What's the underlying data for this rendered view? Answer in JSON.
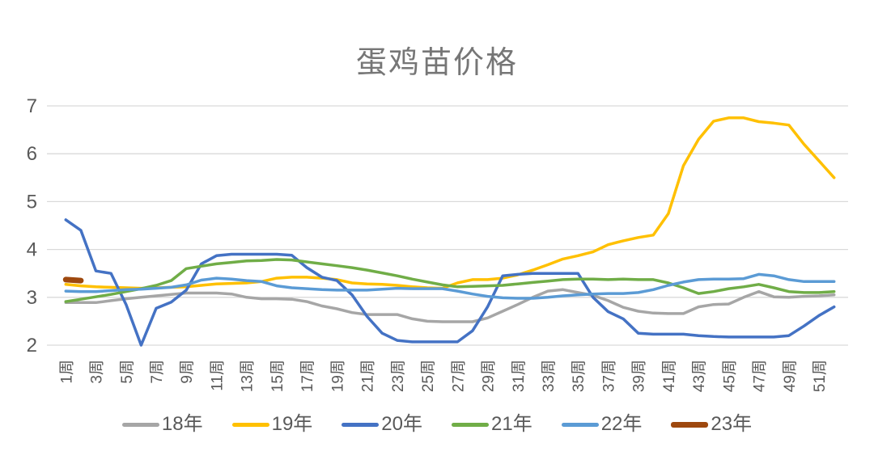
{
  "chart_data": {
    "type": "line",
    "title": "蛋鸡苗价格",
    "xlabel": "",
    "ylabel": "",
    "ylim": [
      2,
      7
    ],
    "yticks": [
      2,
      3,
      4,
      5,
      6,
      7
    ],
    "x_weeks": 52,
    "x_tick_labels": [
      "1周",
      "3周",
      "5周",
      "7周",
      "9周",
      "11周",
      "13周",
      "15周",
      "17周",
      "19周",
      "21周",
      "23周",
      "25周",
      "27周",
      "29周",
      "31周",
      "33周",
      "35周",
      "37周",
      "39周",
      "41周",
      "43周",
      "45周",
      "47周",
      "49周",
      "51周"
    ],
    "grid": "horizontal",
    "legend_position": "bottom",
    "axis_text_color": "#595959",
    "gridline_color": "#D9D9D9",
    "title_color": "#767676",
    "series": [
      {
        "name": "18年",
        "color": "#A6A6A6",
        "bold": false,
        "values": [
          2.89,
          2.89,
          2.89,
          2.93,
          2.97,
          3.0,
          3.03,
          3.06,
          3.09,
          3.09,
          3.09,
          3.07,
          3.0,
          2.97,
          2.97,
          2.96,
          2.91,
          2.82,
          2.76,
          2.68,
          2.64,
          2.64,
          2.64,
          2.55,
          2.5,
          2.49,
          2.49,
          2.49,
          2.57,
          2.71,
          2.85,
          3.0,
          3.13,
          3.16,
          3.1,
          3.04,
          2.93,
          2.79,
          2.71,
          2.67,
          2.66,
          2.66,
          2.8,
          2.85,
          2.86,
          3.0,
          3.12,
          3.01,
          3.0,
          3.02,
          3.03,
          3.05
        ]
      },
      {
        "name": "19年",
        "color": "#FFC000",
        "bold": false,
        "values": [
          3.27,
          3.24,
          3.22,
          3.21,
          3.2,
          3.19,
          3.2,
          3.21,
          3.22,
          3.25,
          3.28,
          3.29,
          3.3,
          3.33,
          3.4,
          3.42,
          3.42,
          3.4,
          3.37,
          3.3,
          3.28,
          3.27,
          3.25,
          3.22,
          3.2,
          3.19,
          3.3,
          3.37,
          3.37,
          3.4,
          3.47,
          3.57,
          3.68,
          3.8,
          3.87,
          3.95,
          4.1,
          4.18,
          4.25,
          4.3,
          4.75,
          5.75,
          6.3,
          6.68,
          6.75,
          6.75,
          6.67,
          6.64,
          6.6,
          6.2,
          5.85,
          5.5
        ]
      },
      {
        "name": "20年",
        "color": "#4472C4",
        "bold": false,
        "values": [
          4.62,
          4.4,
          3.55,
          3.5,
          2.85,
          2.0,
          2.77,
          2.9,
          3.15,
          3.7,
          3.87,
          3.9,
          3.9,
          3.9,
          3.9,
          3.88,
          3.62,
          3.42,
          3.35,
          3.05,
          2.6,
          2.25,
          2.1,
          2.07,
          2.07,
          2.07,
          2.07,
          2.3,
          2.8,
          3.45,
          3.48,
          3.5,
          3.5,
          3.5,
          3.5,
          3.0,
          2.7,
          2.55,
          2.25,
          2.23,
          2.23,
          2.23,
          2.2,
          2.18,
          2.17,
          2.17,
          2.17,
          2.17,
          2.2,
          2.4,
          2.62,
          2.8
        ]
      },
      {
        "name": "21年",
        "color": "#70AD47",
        "bold": false,
        "values": [
          2.91,
          2.96,
          3.01,
          3.06,
          3.12,
          3.18,
          3.25,
          3.35,
          3.6,
          3.65,
          3.7,
          3.73,
          3.76,
          3.77,
          3.79,
          3.78,
          3.74,
          3.7,
          3.66,
          3.62,
          3.57,
          3.51,
          3.45,
          3.38,
          3.32,
          3.26,
          3.22,
          3.23,
          3.24,
          3.25,
          3.28,
          3.31,
          3.34,
          3.37,
          3.38,
          3.38,
          3.37,
          3.38,
          3.37,
          3.37,
          3.3,
          3.2,
          3.08,
          3.12,
          3.18,
          3.22,
          3.27,
          3.2,
          3.12,
          3.1,
          3.1,
          3.12
        ]
      },
      {
        "name": "22年",
        "color": "#5B9BD5",
        "bold": false,
        "values": [
          3.13,
          3.12,
          3.12,
          3.14,
          3.16,
          3.17,
          3.19,
          3.21,
          3.26,
          3.36,
          3.4,
          3.38,
          3.35,
          3.33,
          3.24,
          3.2,
          3.18,
          3.16,
          3.15,
          3.15,
          3.15,
          3.17,
          3.19,
          3.18,
          3.18,
          3.18,
          3.13,
          3.07,
          3.02,
          2.99,
          2.98,
          2.98,
          3.0,
          3.03,
          3.05,
          3.07,
          3.08,
          3.08,
          3.1,
          3.16,
          3.25,
          3.32,
          3.37,
          3.38,
          3.38,
          3.39,
          3.48,
          3.45,
          3.37,
          3.33,
          3.33,
          3.33
        ]
      },
      {
        "name": "23年",
        "color": "#9E480E",
        "bold": true,
        "values": [
          3.37,
          3.35
        ]
      }
    ]
  }
}
